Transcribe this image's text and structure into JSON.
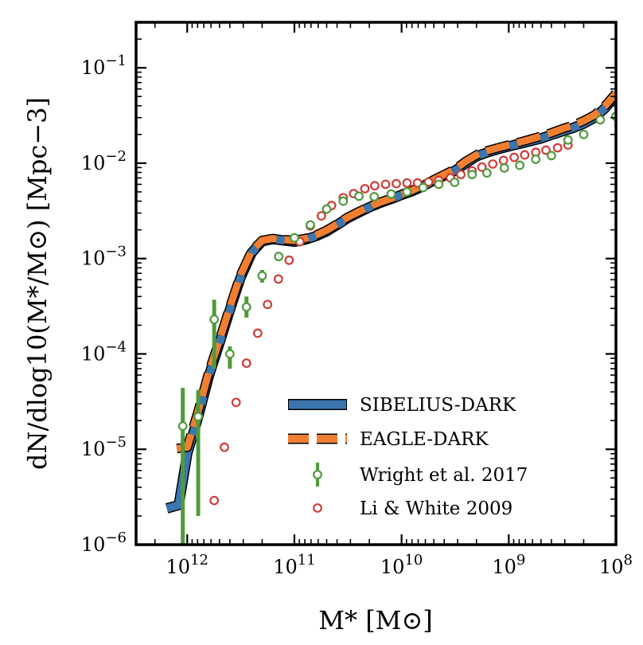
{
  "chart_data": {
    "type": "line",
    "title": "",
    "xlabel": "M* [M⊙]",
    "ylabel": "dN/dlog10(M*/M⊙) [Mpc−3]",
    "x_scale": "log",
    "y_scale": "log",
    "x_reversed": true,
    "xlim": [
      3000000000000.0,
      100000000.0
    ],
    "ylim": [
      1e-06,
      0.3
    ],
    "x_ticks": [
      {
        "value": 1000000000000.0,
        "base": "10",
        "exp": "12"
      },
      {
        "value": 100000000000.0,
        "base": "10",
        "exp": "11"
      },
      {
        "value": 10000000000.0,
        "base": "10",
        "exp": "10"
      },
      {
        "value": 1000000000.0,
        "base": "10",
        "exp": "9"
      },
      {
        "value": 100000000.0,
        "base": "10",
        "exp": "8"
      }
    ],
    "y_ticks": [
      {
        "value": 1e-06,
        "base": "10",
        "exp": "−6"
      },
      {
        "value": 1e-05,
        "base": "10",
        "exp": "−5"
      },
      {
        "value": 0.0001,
        "base": "10",
        "exp": "−4"
      },
      {
        "value": 0.001,
        "base": "10",
        "exp": "−3"
      },
      {
        "value": 0.01,
        "base": "10",
        "exp": "−2"
      },
      {
        "value": 0.1,
        "base": "10",
        "exp": "−1"
      }
    ],
    "legend_position": "lower-right",
    "series": [
      {
        "name": "SIBELIUS-DARK",
        "style": "solid-band",
        "color": "#3b76af",
        "x": [
          1550000000000.0,
          1200000000000.0,
          1000000000000.0,
          790000000000.0,
          630000000000.0,
          500000000000.0,
          400000000000.0,
          320000000000.0,
          250000000000.0,
          200000000000.0,
          160000000000.0,
          126000000000.0,
          100000000000.0,
          79000000000.0,
          63000000000.0,
          50000000000.0,
          40000000000.0,
          32000000000.0,
          25000000000.0,
          20000000000.0,
          15800000000.0,
          12600000000.0,
          10000000000.0,
          7900000000.0,
          6300000000.0,
          5000000000.0,
          4000000000.0,
          3200000000.0,
          2500000000.0,
          2000000000.0,
          1580000000.0,
          1260000000.0,
          1000000000.0,
          790000000.0,
          630000000.0,
          500000000.0,
          400000000.0,
          320000000.0,
          250000000.0,
          200000000.0,
          158000000.0,
          126000000.0,
          100000000.0
        ],
        "y": [
          2.4e-06,
          2.6e-06,
          9e-06,
          2.2e-05,
          5.8e-05,
          0.00013,
          0.00029,
          0.00062,
          0.00115,
          0.00152,
          0.0016,
          0.00155,
          0.0015,
          0.00158,
          0.00172,
          0.00193,
          0.00225,
          0.00265,
          0.00305,
          0.00345,
          0.00385,
          0.0042,
          0.00465,
          0.0051,
          0.00575,
          0.0066,
          0.0074,
          0.0083,
          0.01,
          0.0118,
          0.013,
          0.014,
          0.015,
          0.016,
          0.017,
          0.0182,
          0.0198,
          0.0215,
          0.0235,
          0.026,
          0.03,
          0.038,
          0.052
        ]
      },
      {
        "name": "EAGLE-DARK",
        "style": "dashed-band",
        "color": "#f07f31",
        "x": [
          1250000000000.0,
          1000000000000.0,
          790000000000.0,
          630000000000.0,
          500000000000.0,
          400000000000.0,
          320000000000.0,
          250000000000.0,
          200000000000.0,
          160000000000.0,
          126000000000.0,
          100000000000.0,
          79000000000.0,
          63000000000.0,
          50000000000.0,
          40000000000.0,
          32000000000.0,
          25000000000.0,
          20000000000.0,
          15800000000.0,
          12600000000.0,
          10000000000.0,
          7900000000.0,
          6300000000.0,
          5000000000.0,
          4000000000.0,
          3200000000.0,
          2500000000.0,
          2000000000.0,
          1580000000.0,
          1260000000.0,
          1000000000.0,
          790000000.0,
          630000000.0,
          500000000.0,
          400000000.0,
          320000000.0,
          250000000.0,
          200000000.0,
          158000000.0,
          126000000.0,
          100000000.0
        ],
        "y": [
          1.02e-05,
          1.05e-05,
          2.5e-05,
          6.4e-05,
          0.00014,
          0.00031,
          0.00066,
          0.0012,
          0.00155,
          0.00162,
          0.00158,
          0.00155,
          0.00162,
          0.00176,
          0.00198,
          0.0023,
          0.0027,
          0.0031,
          0.0035,
          0.0039,
          0.00425,
          0.0047,
          0.0052,
          0.00585,
          0.0067,
          0.0076,
          0.0086,
          0.0105,
          0.0122,
          0.0135,
          0.0145,
          0.0155,
          0.0166,
          0.0178,
          0.0192,
          0.0208,
          0.0228,
          0.025,
          0.0278,
          0.032,
          0.04,
          0.054
        ]
      },
      {
        "name": "Wright et al. 2017",
        "style": "open-circles-errorbars",
        "color": "#4f9a3c",
        "points": [
          {
            "x": 1100000000000.0,
            "y": 1.75e-05,
            "ylo": 1e-06,
            "yhi": 4.4e-05
          },
          {
            "x": 790000000000.0,
            "y": 2.2e-05,
            "ylo": 2e-06,
            "yhi": 4.2e-05
          },
          {
            "x": 560000000000.0,
            "y": 0.00023,
            "ylo": 7e-05,
            "yhi": 0.00037
          },
          {
            "x": 400000000000.0,
            "y": 0.0001,
            "ylo": 7e-05,
            "yhi": 0.00012
          },
          {
            "x": 280000000000.0,
            "y": 0.00031,
            "ylo": 0.00024,
            "yhi": 0.0004
          },
          {
            "x": 200000000000.0,
            "y": 0.00066,
            "ylo": 0.00056,
            "yhi": 0.00076
          },
          {
            "x": 140000000000.0,
            "y": 0.00105
          },
          {
            "x": 100000000000.0,
            "y": 0.00165
          },
          {
            "x": 71000000000.0,
            "y": 0.00225
          },
          {
            "x": 50000000000.0,
            "y": 0.0033
          },
          {
            "x": 35000000000.0,
            "y": 0.004
          },
          {
            "x": 25000000000.0,
            "y": 0.0045
          },
          {
            "x": 18000000000.0,
            "y": 0.00445
          },
          {
            "x": 12500000000.0,
            "y": 0.00475
          },
          {
            "x": 8900000000.0,
            "y": 0.005
          },
          {
            "x": 6300000000.0,
            "y": 0.00555
          },
          {
            "x": 4500000000.0,
            "y": 0.006
          },
          {
            "x": 3200000000.0,
            "y": 0.0063
          },
          {
            "x": 2200000000.0,
            "y": 0.0076
          },
          {
            "x": 1600000000.0,
            "y": 0.0079
          },
          {
            "x": 1100000000.0,
            "y": 0.0089
          },
          {
            "x": 790000000.0,
            "y": 0.0095
          },
          {
            "x": 560000000.0,
            "y": 0.011
          },
          {
            "x": 400000000.0,
            "y": 0.012
          },
          {
            "x": 280000000.0,
            "y": 0.0175
          },
          {
            "x": 200000000.0,
            "y": 0.02
          },
          {
            "x": 140000000.0,
            "y": 0.0285
          },
          {
            "x": 100000000.0,
            "y": 0.031
          }
        ]
      },
      {
        "name": "Li & White 2009",
        "style": "open-circles",
        "color": "#cf3c37",
        "points": [
          {
            "x": 560000000000.0,
            "y": 2.9e-06
          },
          {
            "x": 450000000000.0,
            "y": 1.05e-05
          },
          {
            "x": 350000000000.0,
            "y": 3.1e-05
          },
          {
            "x": 280000000000.0,
            "y": 8e-05
          },
          {
            "x": 220000000000.0,
            "y": 0.000165
          },
          {
            "x": 178000000000.0,
            "y": 0.00033
          },
          {
            "x": 141000000000.0,
            "y": 0.00061
          },
          {
            "x": 112000000000.0,
            "y": 0.00096
          },
          {
            "x": 89000000000.0,
            "y": 0.0015
          },
          {
            "x": 71000000000.0,
            "y": 0.0022
          },
          {
            "x": 56000000000.0,
            "y": 0.0028
          },
          {
            "x": 45000000000.0,
            "y": 0.0036
          },
          {
            "x": 35000000000.0,
            "y": 0.00435
          },
          {
            "x": 28000000000.0,
            "y": 0.0048
          },
          {
            "x": 22000000000.0,
            "y": 0.0054
          },
          {
            "x": 17800000000.0,
            "y": 0.0058
          },
          {
            "x": 14100000000.0,
            "y": 0.006
          },
          {
            "x": 11200000000.0,
            "y": 0.0061
          },
          {
            "x": 8900000000.0,
            "y": 0.0062
          },
          {
            "x": 7100000000.0,
            "y": 0.0062
          },
          {
            "x": 5600000000.0,
            "y": 0.00635
          },
          {
            "x": 4500000000.0,
            "y": 0.0066
          },
          {
            "x": 3500000000.0,
            "y": 0.007
          },
          {
            "x": 2800000000.0,
            "y": 0.0076
          },
          {
            "x": 2200000000.0,
            "y": 0.0083
          },
          {
            "x": 1780000000.0,
            "y": 0.0091
          },
          {
            "x": 1410000000.0,
            "y": 0.0098
          },
          {
            "x": 1120000000.0,
            "y": 0.0107
          },
          {
            "x": 890000000.0,
            "y": 0.0115
          },
          {
            "x": 710000000.0,
            "y": 0.0122
          },
          {
            "x": 560000000.0,
            "y": 0.013
          },
          {
            "x": 450000000.0,
            "y": 0.0137
          },
          {
            "x": 350000000.0,
            "y": 0.0145
          },
          {
            "x": 280000000.0,
            "y": 0.0155
          }
        ]
      }
    ]
  }
}
